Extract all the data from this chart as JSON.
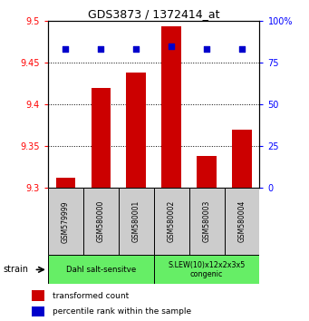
{
  "title": "GDS3873 / 1372414_at",
  "samples": [
    "GSM579999",
    "GSM580000",
    "GSM580001",
    "GSM580002",
    "GSM580003",
    "GSM580004"
  ],
  "bar_values": [
    9.312,
    9.42,
    9.438,
    9.493,
    9.338,
    9.37
  ],
  "percentile_values": [
    83,
    83,
    83,
    85,
    83,
    83
  ],
  "bar_color": "#cc0000",
  "dot_color": "#0000cc",
  "ylim_left": [
    9.3,
    9.5
  ],
  "ylim_right": [
    0,
    100
  ],
  "yticks_left": [
    9.3,
    9.35,
    9.4,
    9.45,
    9.5
  ],
  "yticks_right": [
    0,
    25,
    50,
    75,
    100
  ],
  "group1_label": "Dahl salt-sensitve",
  "group2_label": "S.LEW(10)x12x2x3x5\ncongenic",
  "group1_indices": [
    0,
    1,
    2
  ],
  "group2_indices": [
    3,
    4,
    5
  ],
  "group_color": "#66ee66",
  "sample_box_color": "#cccccc",
  "legend_bar_label": "transformed count",
  "legend_dot_label": "percentile rank within the sample",
  "strain_label": "strain",
  "ybase": 9.3
}
